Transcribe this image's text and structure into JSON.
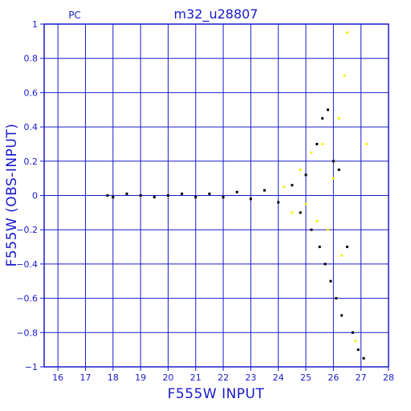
{
  "chart_data": {
    "type": "scatter",
    "title": "m32_u28807",
    "corner_label": "PC",
    "xlabel": "F555W INPUT",
    "ylabel": "F555W (OBS-INPUT)",
    "xlim": [
      15.5,
      28
    ],
    "ylim": [
      -1,
      1
    ],
    "x_ticks": [
      "16",
      "17",
      "18",
      "19",
      "20",
      "21",
      "22",
      "23",
      "24",
      "25",
      "26",
      "27",
      "28"
    ],
    "y_ticks": [
      "−1",
      "−0.8",
      "−0.6",
      "−0.4",
      "−0.2",
      "0",
      "0.2",
      "0.4",
      "0.6",
      "0.8",
      "1"
    ],
    "grid": true,
    "colors": {
      "axes": "#1a1acc",
      "grid": "#1a1acc",
      "primary_points": "#000000",
      "secondary_points": "#f2f21a"
    },
    "series": [
      {
        "color": "#000000",
        "points": [
          [
            17.8,
            0.0
          ],
          [
            18.0,
            -0.01
          ],
          [
            18.5,
            0.01
          ],
          [
            19.0,
            0.0
          ],
          [
            19.5,
            -0.01
          ],
          [
            20.0,
            0.0
          ],
          [
            20.5,
            0.01
          ],
          [
            21.0,
            -0.01
          ],
          [
            21.5,
            0.01
          ],
          [
            22.0,
            -0.01
          ],
          [
            22.5,
            0.02
          ],
          [
            23.0,
            -0.02
          ],
          [
            23.5,
            0.03
          ],
          [
            24.0,
            -0.04
          ],
          [
            24.5,
            0.06
          ],
          [
            24.8,
            -0.1
          ],
          [
            25.0,
            0.12
          ],
          [
            25.2,
            -0.2
          ],
          [
            25.4,
            0.3
          ],
          [
            25.5,
            -0.3
          ],
          [
            25.6,
            0.45
          ],
          [
            25.7,
            -0.4
          ],
          [
            25.8,
            0.5
          ],
          [
            25.9,
            -0.5
          ],
          [
            26.0,
            0.2
          ],
          [
            26.1,
            -0.6
          ],
          [
            26.2,
            0.15
          ],
          [
            26.3,
            -0.7
          ],
          [
            26.5,
            -0.3
          ],
          [
            26.7,
            -0.8
          ],
          [
            26.9,
            -0.9
          ],
          [
            27.1,
            -0.95
          ]
        ]
      },
      {
        "color": "#f2f21a",
        "points": [
          [
            24.2,
            0.05
          ],
          [
            24.5,
            -0.1
          ],
          [
            24.8,
            0.15
          ],
          [
            25.0,
            -0.05
          ],
          [
            25.2,
            0.25
          ],
          [
            25.4,
            -0.15
          ],
          [
            25.6,
            0.3
          ],
          [
            25.8,
            -0.2
          ],
          [
            26.0,
            0.1
          ],
          [
            26.2,
            0.45
          ],
          [
            26.3,
            -0.35
          ],
          [
            26.4,
            0.7
          ],
          [
            26.5,
            0.95
          ],
          [
            26.8,
            -0.85
          ],
          [
            27.2,
            0.3
          ]
        ]
      }
    ]
  }
}
